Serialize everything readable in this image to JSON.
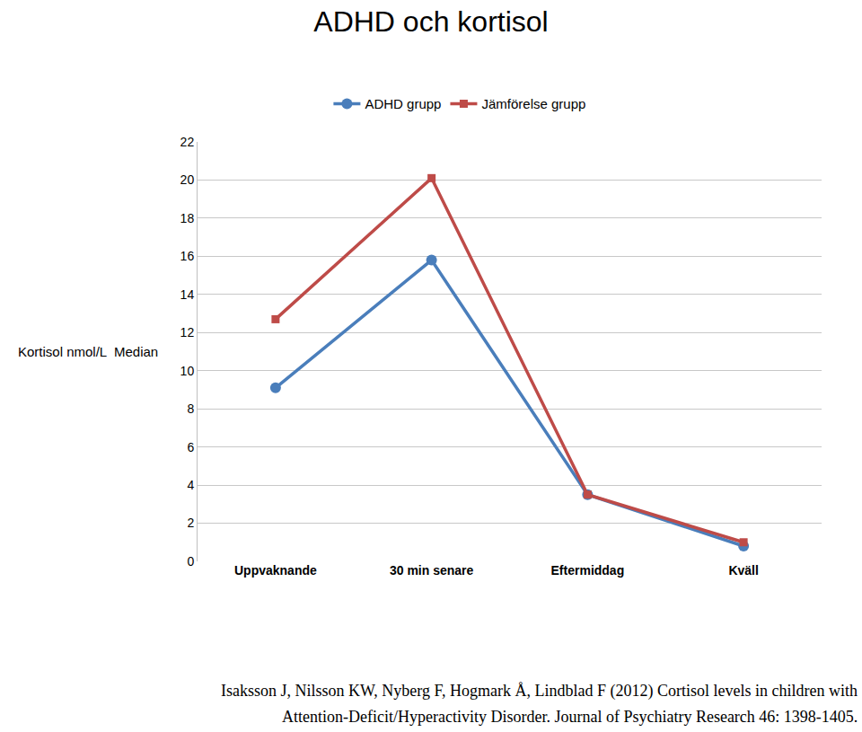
{
  "chart_data": {
    "type": "line",
    "title": "ADHD och kortisol",
    "y_label": "Kortisol nmol/L  Median",
    "categories": [
      "Uppvaknande",
      "30 min senare",
      "Eftermiddag",
      "Kväll"
    ],
    "series": [
      {
        "name": "ADHD grupp",
        "color": "#4a7ebb",
        "marker": "circle",
        "values": [
          9.1,
          15.8,
          3.5,
          0.8
        ]
      },
      {
        "name": "Jämförelse grupp",
        "color": "#be4b48",
        "marker": "square",
        "values": [
          12.7,
          20.1,
          3.5,
          1.0
        ]
      }
    ],
    "ylim": [
      0,
      22
    ],
    "yticks": [
      0,
      2,
      4,
      6,
      8,
      10,
      12,
      14,
      16,
      18,
      20,
      22
    ],
    "grid": true,
    "legend": "top",
    "annotations": [
      "Isaksson J, Nilsson KW, Nyberg F, Hogmark Å, Lindblad F (2012) Cortisol levels in children with",
      "Attention-Deficit/Hyperactivity Disorder. Journal of Psychiatry Research 46: 1398-1405."
    ]
  }
}
